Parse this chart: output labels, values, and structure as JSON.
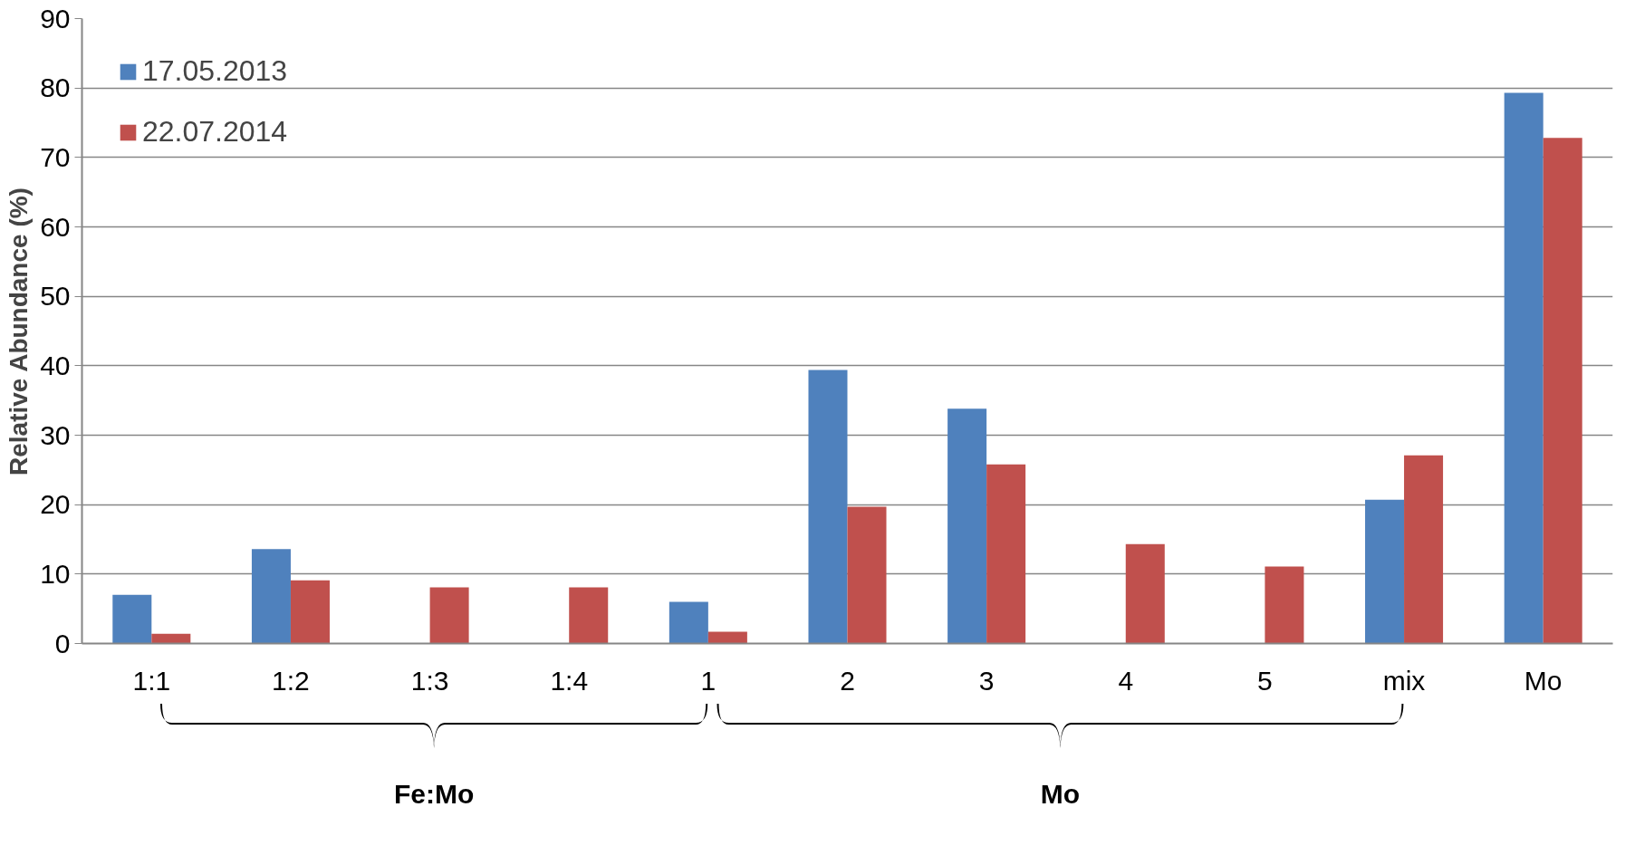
{
  "chart_data": {
    "type": "bar",
    "ylabel": "Relative Abundance (%)",
    "categories": [
      "1:1",
      "1:2",
      "1:3",
      "1:4",
      "1",
      "2",
      "3",
      "4",
      "5",
      "mix",
      "Mo"
    ],
    "series": [
      {
        "name": "17.05.2013",
        "color": "#4f81bd",
        "values": [
          7.0,
          13.6,
          null,
          null,
          6.0,
          39.4,
          33.8,
          null,
          null,
          20.7,
          79.3
        ]
      },
      {
        "name": "22.07.2014",
        "color": "#c0504d",
        "values": [
          1.4,
          9.1,
          8.1,
          8.1,
          1.7,
          19.7,
          25.8,
          14.3,
          11.1,
          27.1,
          72.8
        ]
      }
    ],
    "ylim": [
      0,
      90
    ],
    "yticks": [
      0,
      10,
      20,
      30,
      40,
      50,
      60,
      70,
      80,
      90
    ],
    "grid": "y",
    "legend": "top left",
    "annotations": [
      "Fe:Mo",
      "Mo"
    ]
  }
}
